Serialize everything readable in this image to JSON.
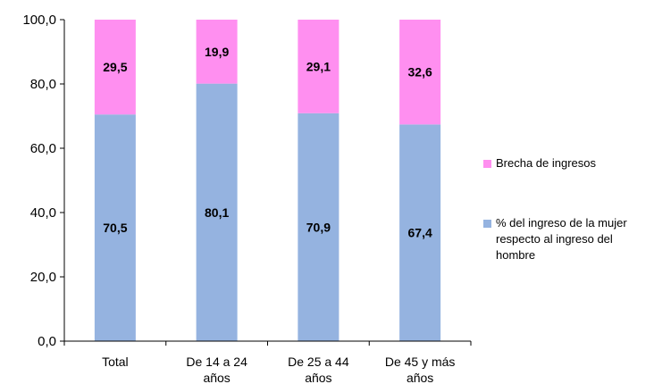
{
  "chart_data": {
    "type": "bar",
    "stacked": true,
    "categories": [
      [
        "Total"
      ],
      [
        "De 14 a 24",
        "años"
      ],
      [
        "De 25 a 44",
        "años"
      ],
      [
        "De 45 y más",
        "años"
      ]
    ],
    "series": [
      {
        "name": [
          "% del ingreso de la mujer",
          "respecto al ingreso del",
          "hombre"
        ],
        "values": [
          70.5,
          80.1,
          70.9,
          67.4
        ],
        "labels": [
          "70,5",
          "80,1",
          "70,9",
          "67,4"
        ],
        "color": "#95b3e0"
      },
      {
        "name": [
          "Brecha de ingresos"
        ],
        "values": [
          29.5,
          19.9,
          29.1,
          32.6
        ],
        "labels": [
          "29,5",
          "19,9",
          "29,1",
          "32,6"
        ],
        "color": "#ff8ff0"
      }
    ],
    "ylim": [
      0,
      100
    ],
    "yticks": [
      0,
      20,
      40,
      60,
      80,
      100
    ],
    "ytick_labels": [
      "0,0",
      "20,0",
      "40,0",
      "60,0",
      "80,0",
      "100,0"
    ],
    "legend_position": "right",
    "legend_order": [
      1,
      0
    ],
    "grid": false
  }
}
